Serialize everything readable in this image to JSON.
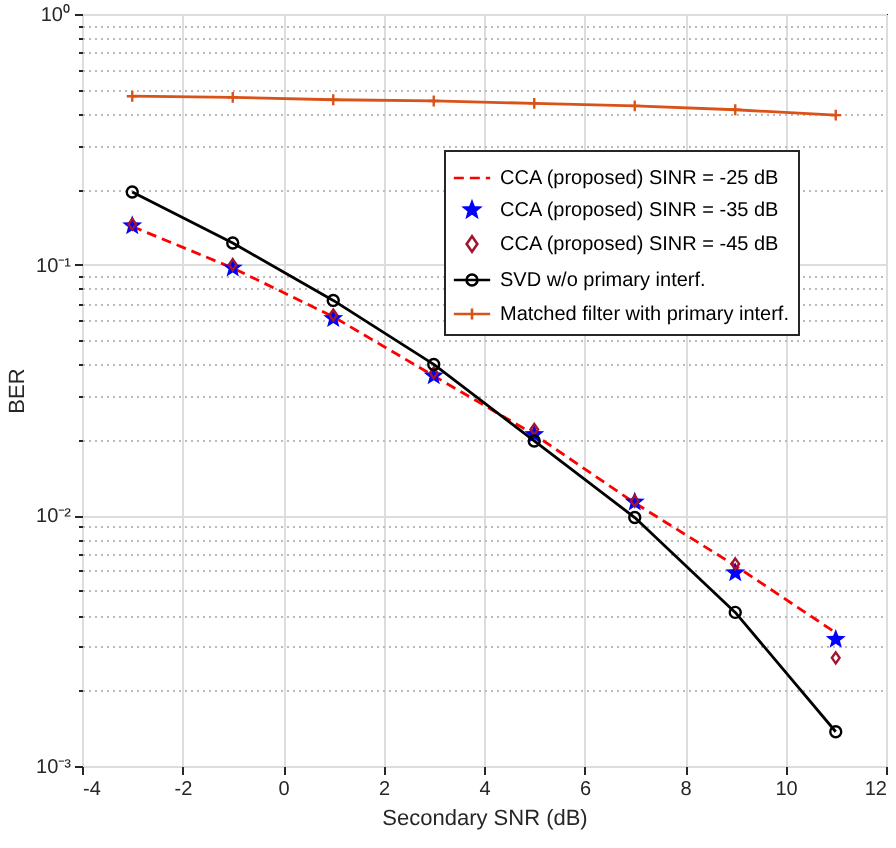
{
  "chart_data": {
    "type": "line",
    "xlabel": "Secondary SNR (dB)",
    "ylabel": "BER",
    "x": [
      -3,
      -1,
      1,
      3,
      5,
      7,
      9,
      11
    ],
    "xlim": [
      -4,
      12
    ],
    "xticks": [
      -4,
      -2,
      0,
      2,
      4,
      6,
      8,
      10,
      12
    ],
    "ylim": [
      0.001,
      1
    ],
    "log": "y",
    "grid": true,
    "legend": "top right",
    "yticks": [
      {
        "value": 0.001,
        "label": "10⁻³"
      },
      {
        "value": 0.002,
        "label": null
      },
      {
        "value": 0.003,
        "label": null
      },
      {
        "value": 0.004,
        "label": null
      },
      {
        "value": 0.005,
        "label": null
      },
      {
        "value": 0.006,
        "label": null
      },
      {
        "value": 0.007,
        "label": null
      },
      {
        "value": 0.008,
        "label": null
      },
      {
        "value": 0.009,
        "label": null
      },
      {
        "value": 0.01,
        "label": "10⁻²"
      },
      {
        "value": 0.02,
        "label": null
      },
      {
        "value": 0.03,
        "label": null
      },
      {
        "value": 0.04,
        "label": null
      },
      {
        "value": 0.05,
        "label": null
      },
      {
        "value": 0.06,
        "label": null
      },
      {
        "value": 0.07,
        "label": null
      },
      {
        "value": 0.08,
        "label": null
      },
      {
        "value": 0.09,
        "label": null
      },
      {
        "value": 0.1,
        "label": "10⁻¹"
      },
      {
        "value": 0.2,
        "label": null
      },
      {
        "value": 0.3,
        "label": null
      },
      {
        "value": 0.4,
        "label": null
      },
      {
        "value": 0.5,
        "label": null
      },
      {
        "value": 0.6,
        "label": null
      },
      {
        "value": 0.7,
        "label": null
      },
      {
        "value": 0.8,
        "label": null
      },
      {
        "value": 0.9,
        "label": null
      },
      {
        "value": 1,
        "label": "10⁰"
      }
    ],
    "series": [
      {
        "name": "CCA (proposed) SINR = -25 dB",
        "color": "#ff0000",
        "line_style": "dashed",
        "marker": "none",
        "values": [
          0.142,
          0.097,
          0.062,
          0.036,
          0.021,
          0.0112,
          0.0063,
          0.0034
        ]
      },
      {
        "name": "CCA (proposed) SINR = -35 dB",
        "type": "scatter",
        "color": "#0000ff",
        "marker": "star",
        "values": [
          0.143,
          0.097,
          0.061,
          0.036,
          0.021,
          0.0113,
          0.0059,
          0.0032
        ]
      },
      {
        "name": "CCA (proposed) SINR = -45 dB",
        "type": "scatter",
        "color": "#a2142f",
        "marker": "diamond",
        "values": [
          0.145,
          0.1,
          0.063,
          0.037,
          0.022,
          0.0114,
          0.0064,
          0.0027
        ]
      },
      {
        "name": "SVD w/o primary interf.",
        "color": "#000000",
        "line_style": "solid",
        "marker": "circle",
        "values": [
          0.195,
          0.122,
          0.072,
          0.04,
          0.0198,
          0.0098,
          0.0041,
          0.00137
        ]
      },
      {
        "name": "Matched filter with primary interf.",
        "color": "#d95319",
        "line_style": "solid",
        "marker": "cross",
        "values": [
          0.47,
          0.465,
          0.455,
          0.45,
          0.44,
          0.43,
          0.415,
          0.395
        ]
      }
    ]
  }
}
